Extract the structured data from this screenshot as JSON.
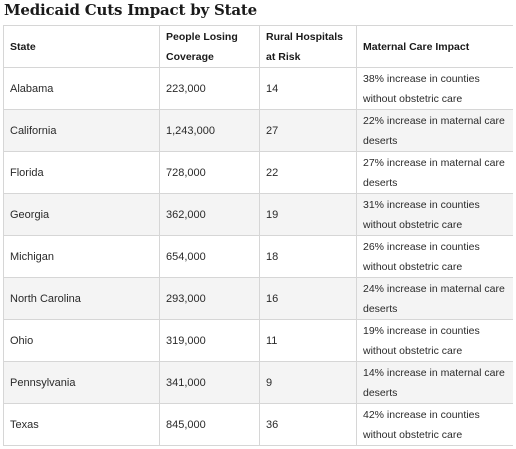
{
  "title": "Medicaid Cuts Impact by State",
  "table": {
    "headers": {
      "state": "State",
      "coverage": "People Losing Coverage",
      "hospitals": "Rural Hospitals at Risk",
      "maternal": "Maternal Care Impact"
    },
    "rows": [
      {
        "state": "Alabama",
        "coverage": "223,000",
        "hospitals": "14",
        "maternal": "38% increase in counties without obstetric care"
      },
      {
        "state": "California",
        "coverage": "1,243,000",
        "hospitals": "27",
        "maternal": "22% increase in maternal care deserts"
      },
      {
        "state": "Florida",
        "coverage": "728,000",
        "hospitals": "22",
        "maternal": "27% increase in maternal care deserts"
      },
      {
        "state": "Georgia",
        "coverage": "362,000",
        "hospitals": "19",
        "maternal": "31% increase in counties without obstetric care"
      },
      {
        "state": "Michigan",
        "coverage": "654,000",
        "hospitals": "18",
        "maternal": "26% increase in counties without obstetric care"
      },
      {
        "state": "North Carolina",
        "coverage": "293,000",
        "hospitals": "16",
        "maternal": "24% increase in maternal care deserts"
      },
      {
        "state": "Ohio",
        "coverage": "319,000",
        "hospitals": "11",
        "maternal": "19% increase in counties without obstetric care"
      },
      {
        "state": "Pennsylvania",
        "coverage": "341,000",
        "hospitals": "9",
        "maternal": "14% increase in maternal care deserts"
      },
      {
        "state": "Texas",
        "coverage": "845,000",
        "hospitals": "36",
        "maternal": "42% increase in counties without obstetric care"
      }
    ]
  }
}
